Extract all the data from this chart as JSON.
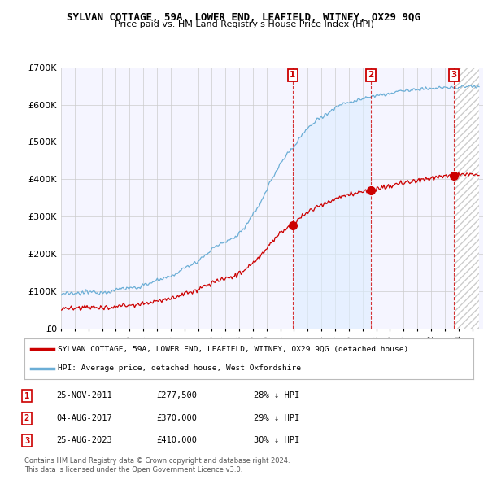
{
  "title": "SYLVAN COTTAGE, 59A, LOWER END, LEAFIELD, WITNEY, OX29 9QG",
  "subtitle": "Price paid vs. HM Land Registry's House Price Index (HPI)",
  "ylim": [
    0,
    700000
  ],
  "yticks": [
    0,
    100000,
    200000,
    300000,
    400000,
    500000,
    600000,
    700000
  ],
  "ytick_labels": [
    "£0",
    "£100K",
    "£200K",
    "£300K",
    "£400K",
    "£500K",
    "£600K",
    "£700K"
  ],
  "hpi_color": "#6baed6",
  "hpi_fill_color": "#ddeeff",
  "price_color": "#cc0000",
  "bg_color": "#ffffff",
  "plot_bg_color": "#f5f5ff",
  "grid_color": "#cccccc",
  "sale_times": [
    2011.9,
    2017.6,
    2023.65
  ],
  "sale_prices": [
    277500,
    370000,
    410000
  ],
  "sale_labels": [
    "1",
    "2",
    "3"
  ],
  "legend_property": "SYLVAN COTTAGE, 59A, LOWER END, LEAFIELD, WITNEY, OX29 9QG (detached house)",
  "legend_hpi": "HPI: Average price, detached house, West Oxfordshire",
  "table_rows": [
    [
      "1",
      "25-NOV-2011",
      "£277,500",
      "28% ↓ HPI"
    ],
    [
      "2",
      "04-AUG-2017",
      "£370,000",
      "29% ↓ HPI"
    ],
    [
      "3",
      "25-AUG-2023",
      "£410,000",
      "30% ↓ HPI"
    ]
  ],
  "footnote1": "Contains HM Land Registry data © Crown copyright and database right 2024.",
  "footnote2": "This data is licensed under the Open Government Licence v3.0."
}
